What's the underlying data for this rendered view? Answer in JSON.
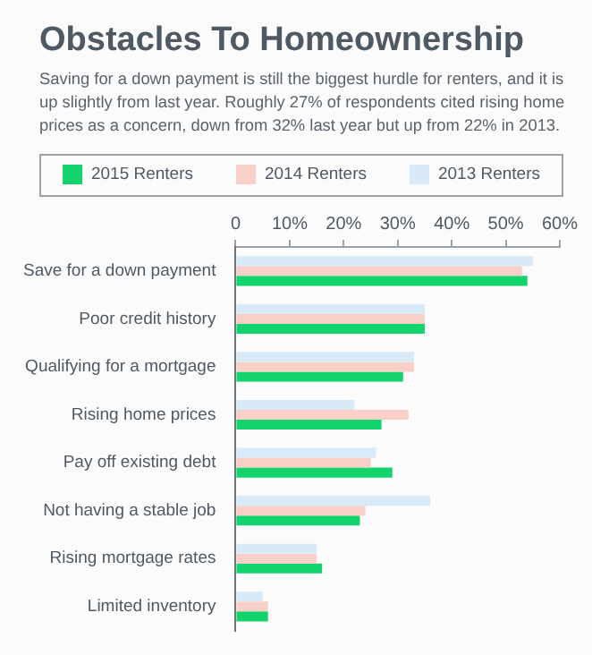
{
  "chart_data": {
    "type": "bar",
    "orientation": "horizontal",
    "title": "Obstacles To Homeownership",
    "subtitle": "Saving for a down payment is still the biggest hurdle for renters, and it is up slightly from last year. Roughly 27% of respondents cited rising home prices as a concern, down from 32% last year but up from 22% in 2013.",
    "categories": [
      "Save for a down payment",
      "Poor credit history",
      "Qualifying for a mortgage",
      "Rising home prices",
      "Pay off existing debt",
      "Not having a stable job",
      "Rising mortgage rates",
      "Limited inventory"
    ],
    "series": [
      {
        "name": "2015 Renters",
        "color": "#13d46c",
        "values": [
          54,
          35,
          31,
          27,
          29,
          23,
          16,
          6
        ]
      },
      {
        "name": "2014 Renters",
        "color": "#f9d0c7",
        "values": [
          53,
          35,
          33,
          32,
          25,
          24,
          15,
          6
        ]
      },
      {
        "name": "2013 Renters",
        "color": "#d8e9f8",
        "values": [
          55,
          35,
          33,
          22,
          26,
          36,
          15,
          5
        ]
      }
    ],
    "xlim": [
      0,
      60
    ],
    "xticks": [
      0,
      {
        "value": 10,
        "label": "10%"
      },
      {
        "value": 20,
        "label": "20%"
      },
      {
        "value": 30,
        "label": "30%"
      },
      {
        "value": 40,
        "label": "40%"
      },
      {
        "value": 50,
        "label": "50%"
      },
      {
        "value": 60,
        "label": "60%"
      }
    ],
    "grid": false,
    "legend": "top"
  }
}
